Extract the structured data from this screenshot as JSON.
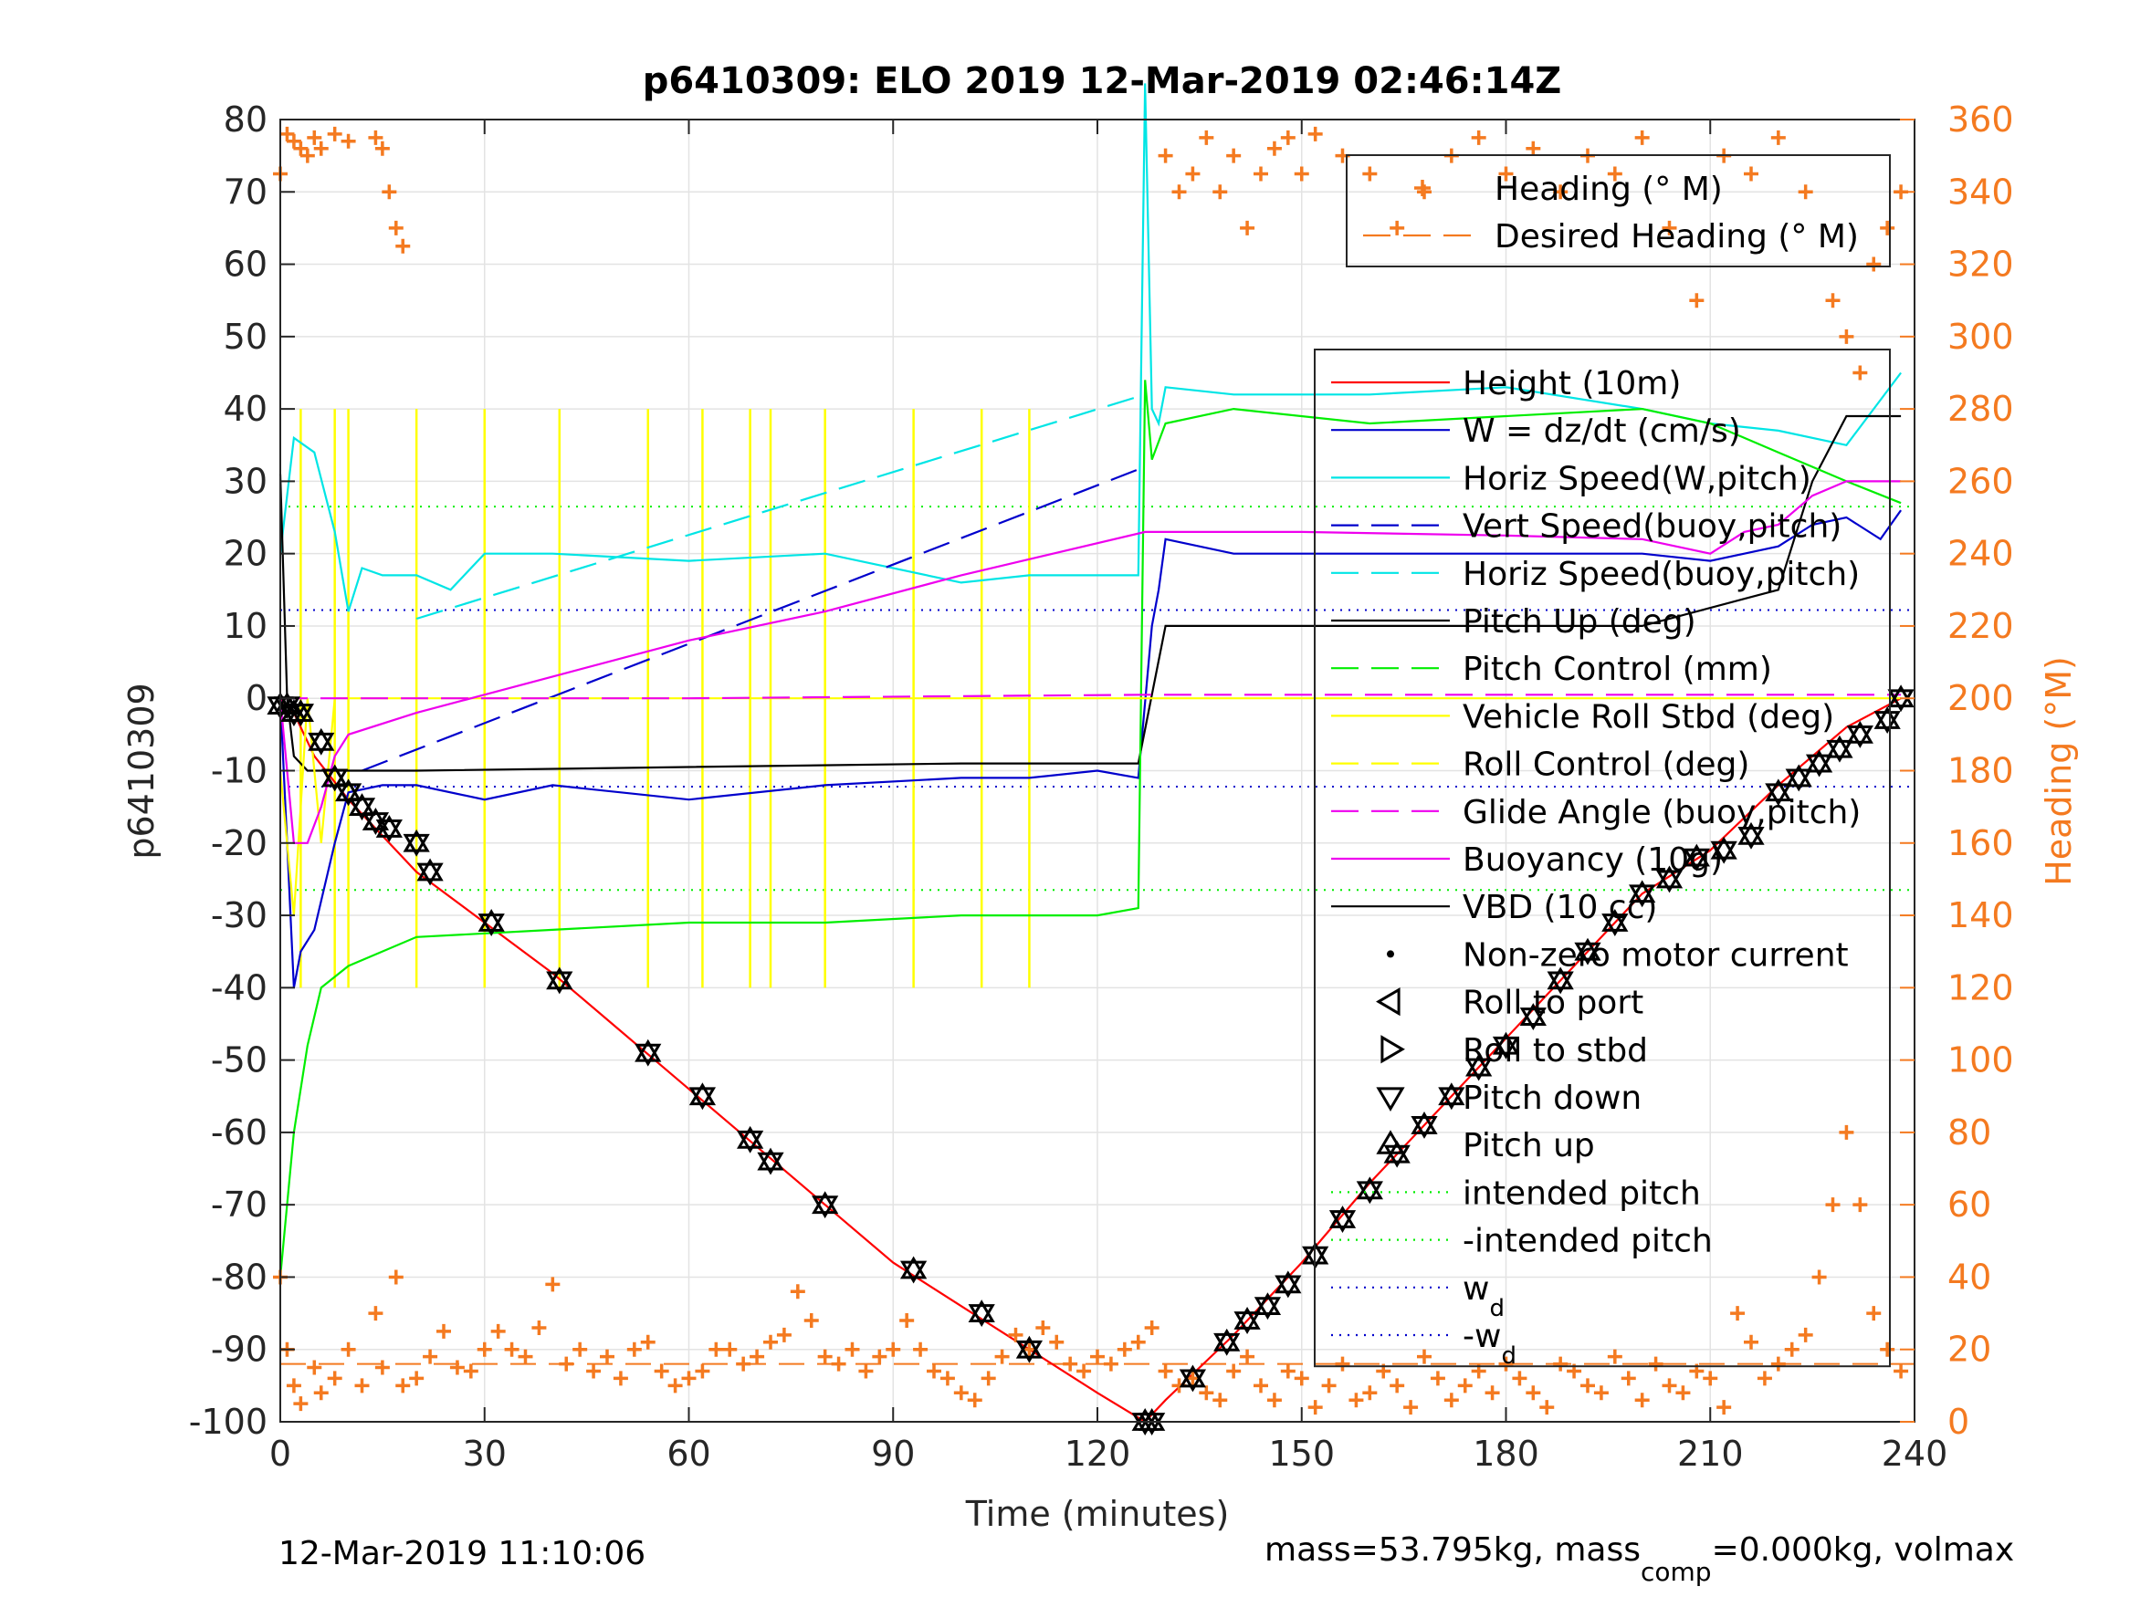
{
  "chart_data": {
    "type": "line",
    "title": "p6410309: ELO 2019 12-Mar-2019 02:46:14Z",
    "xlabel": "Time (minutes)",
    "ylabel_left": "p6410309",
    "ylabel_right": "Heading (°M)",
    "xlim": [
      0,
      240
    ],
    "ylim_left": [
      -100,
      80
    ],
    "ylim_right": [
      0,
      360
    ],
    "xticks": [
      "0",
      "30",
      "60",
      "90",
      "120",
      "150",
      "180",
      "210",
      "240"
    ],
    "yticks_left": [
      "80",
      "70",
      "60",
      "50",
      "40",
      "30",
      "20",
      "10",
      "0",
      "-10",
      "-20",
      "-30",
      "-40",
      "-50",
      "-60",
      "-70",
      "-80",
      "-90",
      "-100"
    ],
    "yticks_right": [
      "360",
      "340",
      "320",
      "300",
      "280",
      "260",
      "240",
      "220",
      "200",
      "180",
      "160",
      "140",
      "120",
      "100",
      "80",
      "60",
      "40",
      "20",
      "0"
    ],
    "grid": true,
    "footer_left": "12-Mar-2019 11:10:06",
    "footer_right": "mass=53.795kg, mass",
    "footer_right_sub": "comp",
    "footer_right_tail": "=0.000kg, volmax",
    "legend_heading": [
      {
        "label": "Heading (° M)",
        "color": "#f47a20",
        "style": "plus"
      },
      {
        "label": "Desired Heading (° M)",
        "color": "#f47a20",
        "style": "dash"
      }
    ],
    "legend_main": [
      {
        "label": "Height (10m)",
        "color": "#ff0000",
        "style": "line"
      },
      {
        "label": "W = dz/dt (cm/s)",
        "color": "#0000cc",
        "style": "line"
      },
      {
        "label": "Horiz Speed(W,pitch)",
        "color": "#00e5e5",
        "style": "line"
      },
      {
        "label": "Vert Speed(buoy,pitch)",
        "color": "#0000cc",
        "style": "dash"
      },
      {
        "label": "Horiz Speed(buoy,pitch)",
        "color": "#00e5e5",
        "style": "dash"
      },
      {
        "label": "Pitch Up (deg)",
        "color": "#000000",
        "style": "line"
      },
      {
        "label": "Pitch Control (mm)",
        "color": "#00ee00",
        "style": "dash"
      },
      {
        "label": "Vehicle Roll Stbd (deg)",
        "color": "#ffff00",
        "style": "line"
      },
      {
        "label": "Roll Control (deg)",
        "color": "#ffff00",
        "style": "dash"
      },
      {
        "label": "Glide Angle (buoy,pitch)",
        "color": "#ee00ee",
        "style": "dash"
      },
      {
        "label": "Buoyancy (10g)",
        "color": "#ee00ee",
        "style": "line"
      },
      {
        "label": "VBD (10 cc)",
        "color": "#000000",
        "style": "line"
      },
      {
        "label": "Non-zero motor current",
        "color": "#000000",
        "style": "dot"
      },
      {
        "label": "Roll to port",
        "color": "#000000",
        "style": "tri-left"
      },
      {
        "label": "Roll to stbd",
        "color": "#000000",
        "style": "tri-right"
      },
      {
        "label": "Pitch down",
        "color": "#000000",
        "style": "tri-down"
      },
      {
        "label": "Pitch up",
        "color": "#000000",
        "style": "tri-up"
      },
      {
        "label": "intended pitch",
        "color": "#00ee00",
        "style": "dot-line"
      },
      {
        "label": "-intended pitch",
        "color": "#00ee00",
        "style": "dot-line"
      },
      {
        "label": "w",
        "sub": "d",
        "color": "#0000cc",
        "style": "dot-line"
      },
      {
        "label": "-w",
        "sub": "d",
        "color": "#0000cc",
        "style": "dot-line"
      }
    ],
    "series": [
      {
        "name": "Height (10m)",
        "axis": "left",
        "color": "#ff0000",
        "x": [
          0,
          2,
          5,
          10,
          20,
          30,
          40,
          50,
          60,
          70,
          80,
          90,
          100,
          110,
          120,
          127,
          130,
          140,
          150,
          160,
          170,
          180,
          190,
          200,
          210,
          220,
          230,
          238
        ],
        "y": [
          0,
          -2,
          -8,
          -14,
          -24,
          -31,
          -38,
          -46,
          -54,
          -62,
          -70,
          -78,
          -84,
          -90,
          -96,
          -100,
          -97,
          -88,
          -78,
          -67,
          -57,
          -47,
          -37,
          -27,
          -21,
          -12,
          -4,
          0
        ]
      },
      {
        "name": "W = dz/dt (cm/s)",
        "axis": "left",
        "color": "#0000cc",
        "x": [
          0,
          1,
          2,
          3,
          5,
          8,
          10,
          15,
          20,
          30,
          40,
          60,
          80,
          100,
          110,
          120,
          126,
          128,
          129,
          130,
          140,
          150,
          160,
          180,
          200,
          210,
          215,
          220,
          225,
          230,
          235,
          238
        ],
        "y": [
          0,
          -20,
          -40,
          -35,
          -32,
          -20,
          -13,
          -12,
          -12,
          -14,
          -12,
          -14,
          -12,
          -11,
          -11,
          -10,
          -11,
          10,
          15,
          22,
          20,
          20,
          20,
          20,
          20,
          19,
          20,
          21,
          24,
          25,
          22,
          26
        ]
      },
      {
        "name": "Horiz Speed(W,pitch)",
        "axis": "left",
        "color": "#00e5e5",
        "x": [
          0,
          2,
          5,
          8,
          10,
          12,
          15,
          20,
          25,
          30,
          40,
          60,
          80,
          100,
          110,
          120,
          126,
          127,
          128,
          129,
          130,
          140,
          160,
          180,
          200,
          210,
          220,
          230,
          238
        ],
        "y": [
          20,
          36,
          34,
          23,
          12,
          18,
          17,
          17,
          15,
          20,
          20,
          19,
          20,
          16,
          17,
          17,
          17,
          85,
          40,
          38,
          43,
          42,
          42,
          43,
          40,
          38,
          37,
          35,
          45
        ]
      },
      {
        "name": "Vert Speed(buoy,pitch)",
        "axis": "left",
        "color": "#0000cc",
        "dashed": true,
        "x": [
          12,
          127
        ],
        "y": [
          -10,
          32
        ]
      },
      {
        "name": "Horiz Speed(buoy,pitch)",
        "axis": "left",
        "color": "#00e5e5",
        "dashed": true,
        "x": [
          20,
          127
        ],
        "y": [
          11,
          42
        ]
      },
      {
        "name": "Pitch Up (deg)",
        "axis": "left",
        "color": "#000000",
        "x": [
          0,
          1,
          2,
          4,
          6,
          20,
          60,
          100,
          126,
          130,
          200,
          220,
          225,
          230,
          238
        ],
        "y": [
          31,
          0,
          -8,
          -10,
          -10,
          -10,
          -9.5,
          -9,
          -9,
          10,
          10,
          15,
          30,
          39,
          39
        ]
      },
      {
        "name": "Pitch Control (mm)",
        "axis": "left",
        "color": "#00ee00",
        "x": [
          0,
          2,
          4,
          6,
          10,
          20,
          40,
          60,
          80,
          100,
          120,
          126,
          127,
          128,
          130,
          140,
          160,
          180,
          200,
          210,
          220,
          230,
          238
        ],
        "y": [
          -80,
          -60,
          -48,
          -40,
          -37,
          -33,
          -32,
          -31,
          -31,
          -30,
          -30,
          -29,
          44,
          33,
          38,
          40,
          38,
          39,
          40,
          38,
          34,
          30,
          27
        ]
      },
      {
        "name": "Vehicle Roll Stbd (deg)",
        "axis": "left",
        "color": "#ffff00",
        "x": [
          0,
          2,
          4,
          6,
          8,
          10,
          20,
          40,
          60,
          80,
          100,
          120,
          127,
          130,
          140,
          160,
          180,
          200,
          220,
          230,
          238
        ],
        "y": [
          -10,
          -30,
          0,
          -20,
          0,
          0,
          0,
          0,
          0,
          0,
          0,
          0,
          0,
          0,
          0,
          0,
          0,
          0,
          0,
          0,
          0
        ]
      },
      {
        "name": "Glide Angle (buoy,pitch)",
        "axis": "left",
        "color": "#ee00ee",
        "dashed": true,
        "x": [
          0,
          10,
          60,
          127,
          180,
          238
        ],
        "y": [
          0,
          0,
          0,
          0.5,
          0.5,
          0.5
        ]
      },
      {
        "name": "Buoyancy (10g)",
        "axis": "left",
        "color": "#ee00ee",
        "x": [
          0,
          2,
          4,
          6,
          8,
          10,
          20,
          40,
          60,
          80,
          100,
          127,
          150,
          180,
          200,
          210,
          215,
          220,
          225,
          230,
          238
        ],
        "y": [
          0,
          -20,
          -20,
          -15,
          -8,
          -5,
          -2,
          3,
          8,
          12,
          17,
          23,
          23,
          22.5,
          22,
          20,
          23,
          24,
          28,
          30,
          30
        ]
      }
    ],
    "hlines": [
      {
        "name": "intended pitch",
        "axis": "left",
        "y": 26.5,
        "color": "#00ee00"
      },
      {
        "name": "-intended pitch",
        "axis": "left",
        "y": -26.5,
        "color": "#00ee00"
      },
      {
        "name": "w d",
        "axis": "left",
        "y": 12.2,
        "color": "#0000cc"
      },
      {
        "name": "-w d",
        "axis": "left",
        "y": -12.2,
        "color": "#0000cc"
      },
      {
        "name": "Desired Heading (° M)",
        "axis": "right",
        "y": 16,
        "color": "#f47a20"
      }
    ],
    "roll_control_spikes_x": [
      3,
      8,
      10,
      20,
      30,
      41,
      54,
      62,
      69,
      72,
      80,
      93,
      103,
      110
    ],
    "markers": {
      "x": [
        0,
        1,
        2,
        3,
        6,
        8,
        10,
        12,
        14,
        16,
        20,
        22,
        31,
        41,
        54,
        62,
        69,
        72,
        80,
        93,
        103,
        110,
        127,
        128,
        134,
        139,
        142,
        145,
        148,
        152,
        156,
        160,
        164,
        168,
        172,
        176,
        180,
        184,
        188,
        192,
        196,
        200,
        204,
        208,
        212,
        216,
        220,
        223,
        226,
        229,
        232,
        236,
        238
      ],
      "y": [
        -1,
        -1,
        -2,
        -2,
        -6,
        -11,
        -13,
        -15,
        -17,
        -18,
        -20,
        -24,
        -31,
        -39,
        -49,
        -55,
        -61,
        -64,
        -70,
        -79,
        -85,
        -90,
        -100,
        -100,
        -94,
        -89,
        -86,
        -84,
        -81,
        -77,
        -72,
        -68,
        -63,
        -59,
        -55,
        -51,
        -48,
        -44,
        -39,
        -35,
        -31,
        -27,
        -25,
        -22,
        -21,
        -19,
        -13,
        -11,
        -9,
        -7,
        -5,
        -3,
        0
      ]
    },
    "heading_points": {
      "x": [
        0,
        1,
        2,
        3,
        5,
        6,
        8,
        10,
        12,
        14,
        15,
        17,
        18,
        20,
        22,
        24,
        26,
        28,
        30,
        32,
        34,
        36,
        38,
        40,
        42,
        44,
        46,
        48,
        50,
        52,
        54,
        56,
        58,
        60,
        62,
        64,
        66,
        68,
        70,
        72,
        74,
        76,
        78,
        80,
        82,
        84,
        86,
        88,
        90,
        92,
        94,
        96,
        98,
        100,
        102,
        104,
        106,
        108,
        110,
        112,
        114,
        116,
        118,
        120,
        122,
        124,
        126,
        128,
        130,
        132,
        134,
        136,
        138,
        140,
        142,
        144,
        146,
        148,
        150,
        152,
        154,
        156,
        158,
        160,
        162,
        164,
        166,
        168,
        170,
        172,
        174,
        176,
        178,
        180,
        182,
        184,
        186,
        188,
        190,
        192,
        194,
        196,
        198,
        200,
        202,
        204,
        206,
        208,
        210,
        212,
        214,
        216,
        218,
        220,
        222,
        224,
        226,
        228,
        230,
        232,
        234,
        236,
        238,
        0,
        1,
        2,
        3,
        4,
        5,
        6,
        8,
        10,
        14,
        15,
        16,
        17,
        18,
        130,
        132,
        134,
        136,
        138,
        140,
        142,
        144,
        146,
        148,
        150,
        152,
        156,
        160,
        164,
        168,
        172,
        176,
        180,
        184,
        188,
        192,
        196,
        200,
        204,
        208,
        212,
        216,
        220,
        224,
        228,
        230,
        232,
        234,
        236,
        238
      ],
      "y": [
        40,
        20,
        10,
        5,
        15,
        8,
        12,
        20,
        10,
        30,
        15,
        40,
        10,
        12,
        18,
        25,
        15,
        14,
        20,
        25,
        20,
        18,
        26,
        38,
        16,
        20,
        14,
        18,
        12,
        20,
        22,
        14,
        10,
        12,
        14,
        20,
        20,
        16,
        18,
        22,
        24,
        36,
        28,
        18,
        16,
        20,
        14,
        18,
        20,
        28,
        20,
        14,
        12,
        8,
        6,
        12,
        18,
        24,
        20,
        26,
        22,
        16,
        14,
        18,
        16,
        20,
        22,
        26,
        14,
        10,
        12,
        8,
        6,
        14,
        18,
        10,
        6,
        14,
        12,
        4,
        10,
        16,
        6,
        8,
        14,
        10,
        4,
        18,
        12,
        6,
        10,
        14,
        8,
        16,
        12,
        8,
        4,
        16,
        14,
        10,
        8,
        18,
        12,
        6,
        16,
        10,
        8,
        14,
        12,
        4,
        30,
        22,
        12,
        16,
        20,
        24,
        40,
        60,
        80,
        60,
        30,
        20,
        14,
        345,
        356,
        354,
        352,
        350,
        355,
        352,
        356,
        354,
        355,
        352,
        340,
        330,
        325,
        350,
        340,
        345,
        355,
        340,
        350,
        330,
        345,
        352,
        355,
        345,
        356,
        350,
        345,
        330,
        340,
        350,
        355,
        345,
        352,
        340,
        350,
        345,
        355,
        330,
        310,
        350,
        345,
        355,
        340,
        310,
        300,
        290,
        320,
        330,
        340
      ]
    }
  }
}
